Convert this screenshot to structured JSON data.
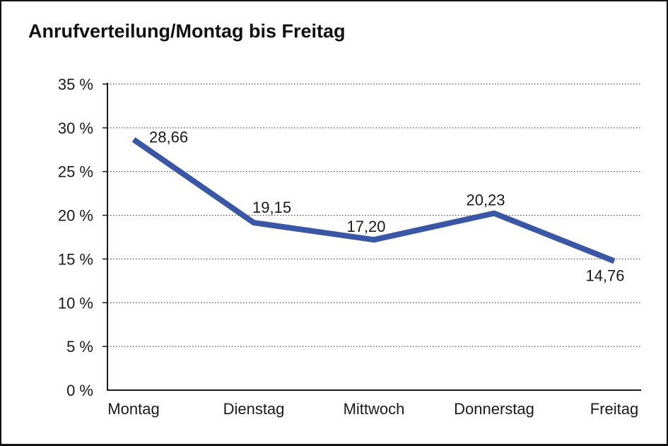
{
  "page": {
    "title": "Anrufverteilung/Montag bis Freitag"
  },
  "chart_data": {
    "type": "line",
    "title": "Anrufverteilung/Montag bis Freitag",
    "categories": [
      "Montag",
      "Dienstag",
      "Mittwoch",
      "Donnerstag",
      "Freitag"
    ],
    "values": [
      28.66,
      19.15,
      17.2,
      20.23,
      14.76
    ],
    "value_labels": [
      "28,66",
      "19,15",
      "17,20",
      "20,23",
      "14,76"
    ],
    "y_ticks": [
      0,
      5,
      10,
      15,
      20,
      25,
      30,
      35
    ],
    "y_tick_labels": [
      "0 %",
      "5 %",
      "10 %",
      "15 %",
      "20 %",
      "25 %",
      "30 %",
      "35 %"
    ],
    "ylim": [
      0,
      35
    ],
    "xlabel": "",
    "ylabel": "",
    "legend": "none",
    "grid": "dotted-horizontal",
    "line_color": "#3A57A6",
    "axis_color": "#1a1a1a",
    "grid_color": "#2a2a2a",
    "text_color": "#1a1a1a"
  }
}
